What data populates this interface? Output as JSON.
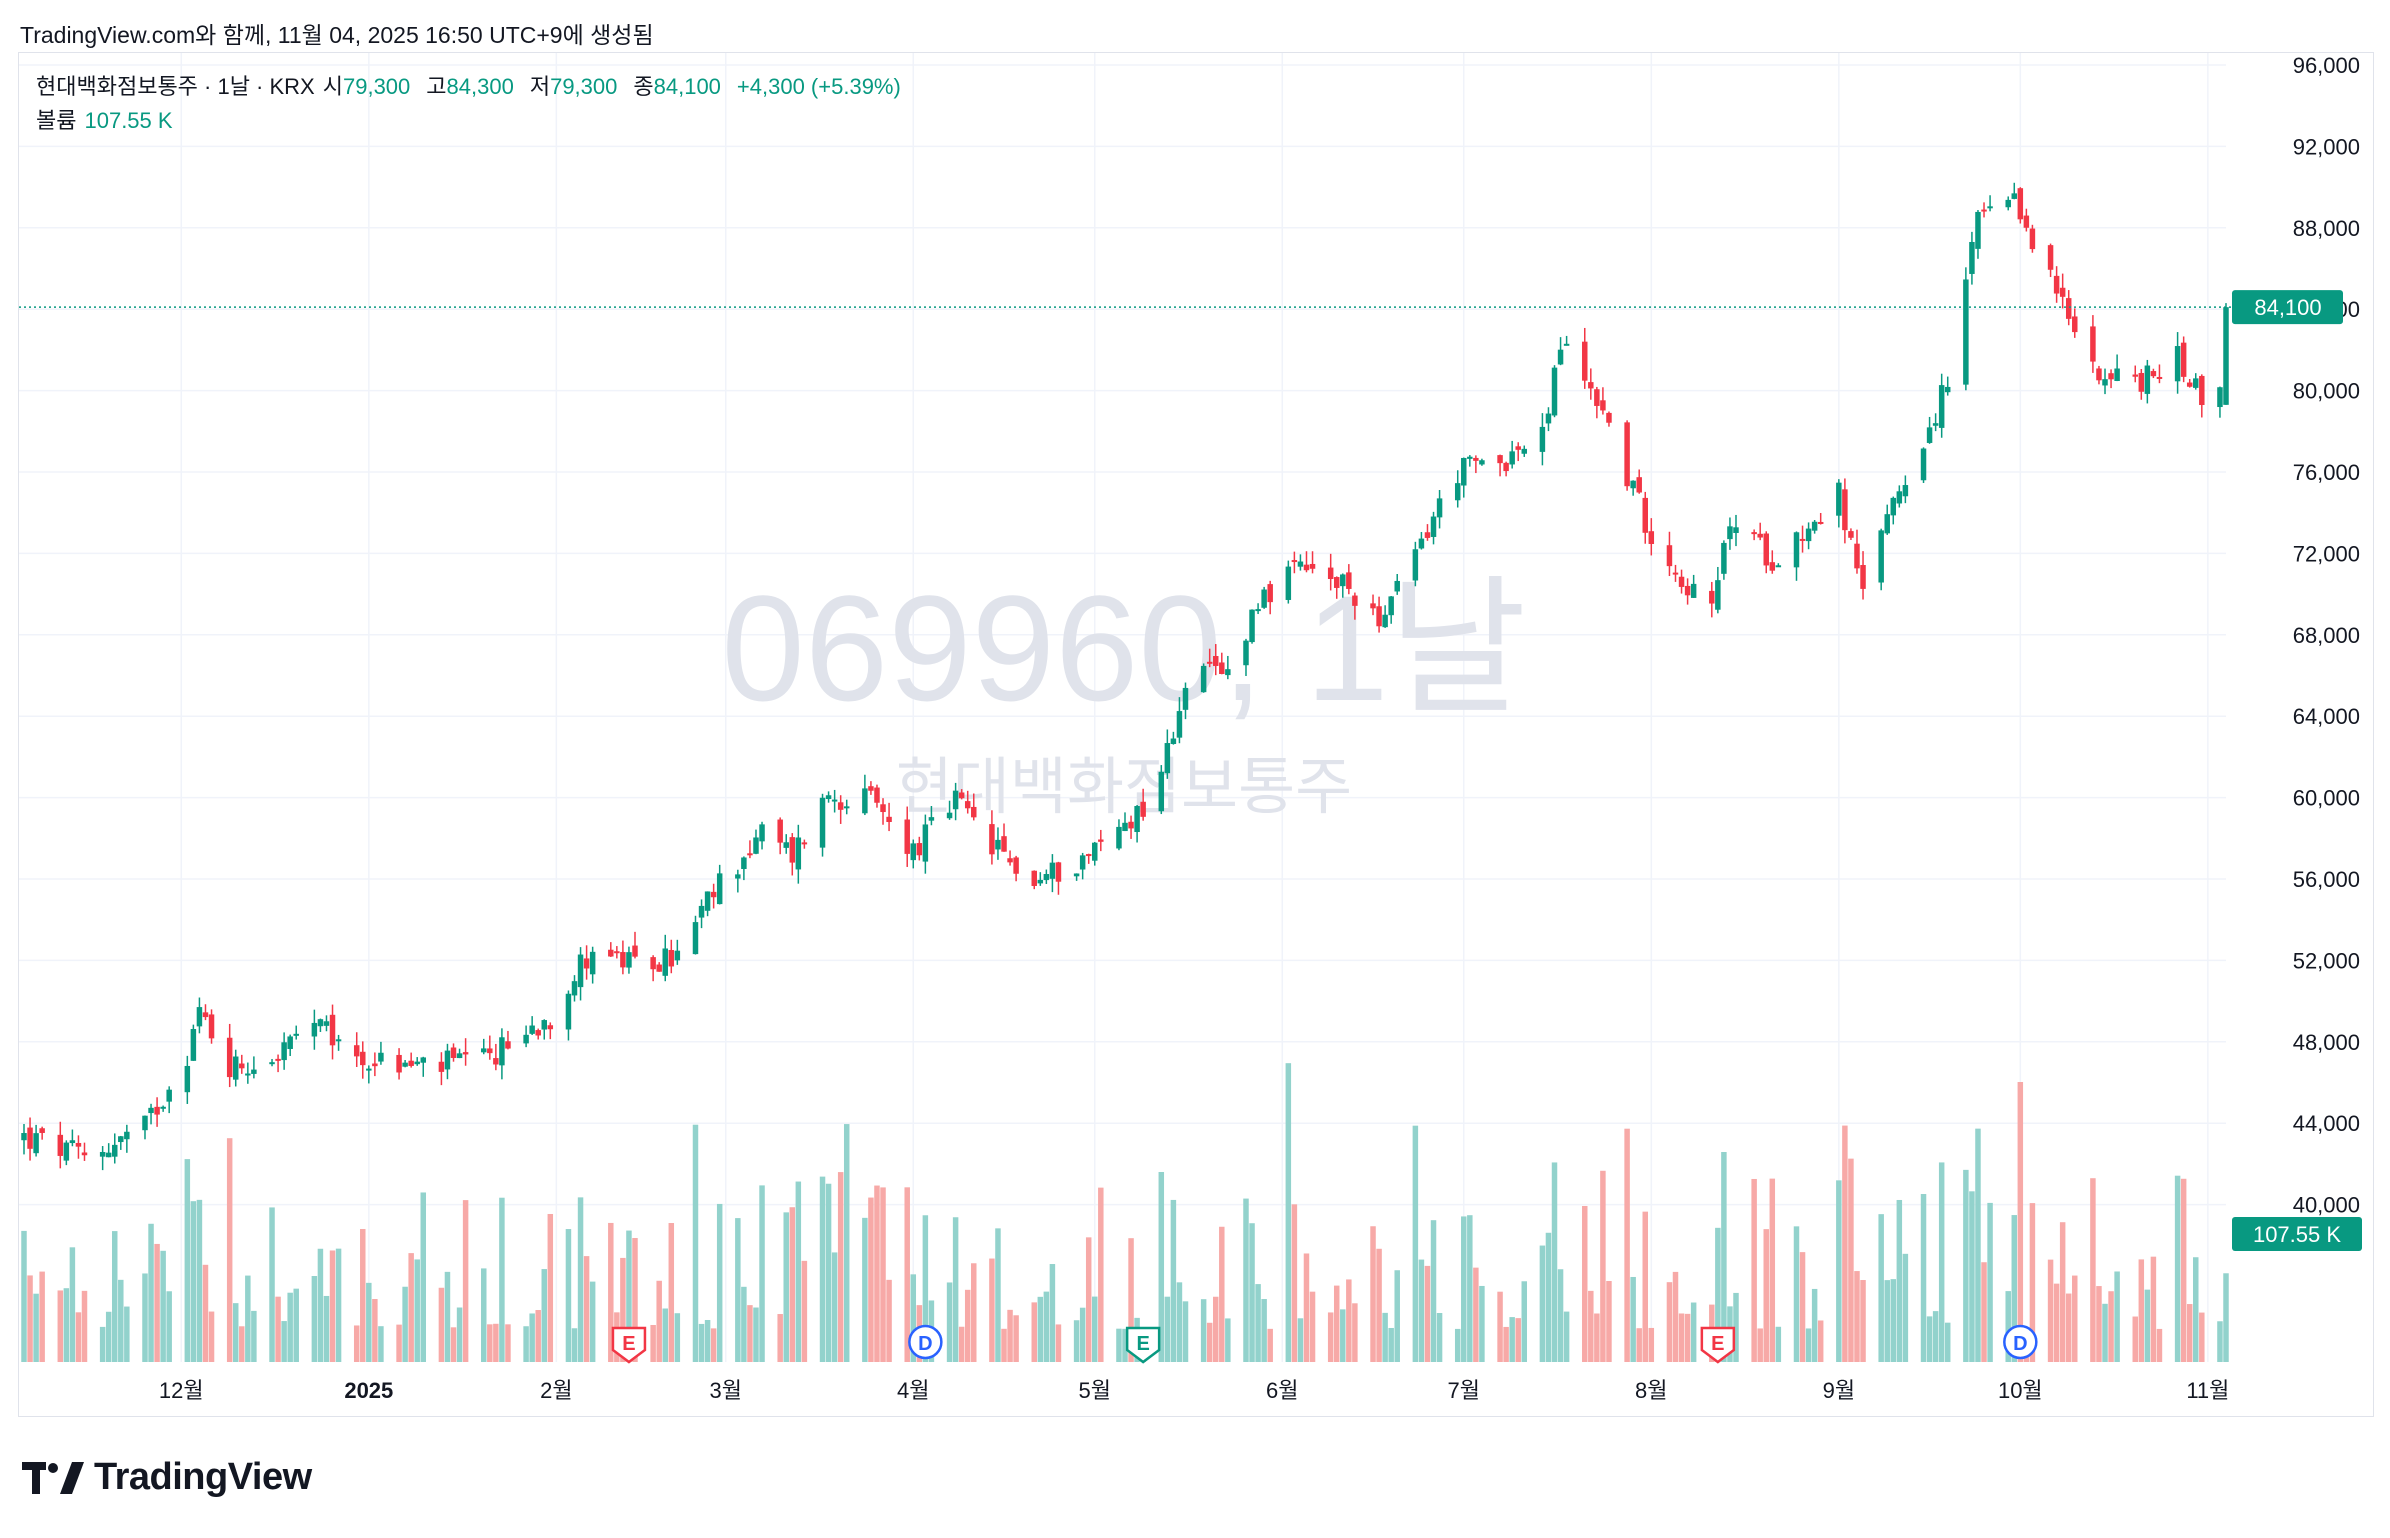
{
  "caption": "TradingView.com와 함께, 11월 04, 2025 16:50 UTC+9에 생성됨",
  "legend": {
    "title": "현대백화점보통주 · 1날 · KRX",
    "open_label": "시",
    "open": "79,300",
    "high_label": "고",
    "high": "84,300",
    "low_label": "저",
    "low": "79,300",
    "close_label": "종",
    "close": "84,100",
    "change": "+4,300 (+5.39%)",
    "volume_label": "볼륨",
    "volume": "107.55 K"
  },
  "watermark": {
    "symbol": "069960, 1날",
    "name": "현대백화점보통주"
  },
  "price_tag": "84,100",
  "volume_tag": "107.55 K",
  "brand": "TradingView",
  "colors": {
    "up": "#089981",
    "down": "#f23645",
    "up_vol": "#92d2cc",
    "down_vol": "#f7a9a7",
    "grid": "#f0f3fa",
    "axis_text": "#131722"
  },
  "chart_data": {
    "type": "candlestick",
    "y_axis": {
      "min": 36000,
      "max": 96000,
      "ticks": [
        "96,000",
        "92,000",
        "88,000",
        "84,000",
        "80,000",
        "76,000",
        "72,000",
        "68,000",
        "64,000",
        "60,000",
        "56,000",
        "52,000",
        "48,000",
        "44,000",
        "40,000"
      ]
    },
    "x_axis": {
      "labels": [
        {
          "label": "12월",
          "date": "2024-12-01",
          "bold": false
        },
        {
          "label": "2025",
          "date": "2025-01-01",
          "bold": true
        },
        {
          "label": "2월",
          "date": "2025-02-01",
          "bold": false
        },
        {
          "label": "3월",
          "date": "2025-03-01",
          "bold": false
        },
        {
          "label": "4월",
          "date": "2025-04-01",
          "bold": false
        },
        {
          "label": "5월",
          "date": "2025-05-01",
          "bold": false
        },
        {
          "label": "6월",
          "date": "2025-06-01",
          "bold": false
        },
        {
          "label": "7월",
          "date": "2025-07-01",
          "bold": false
        },
        {
          "label": "8월",
          "date": "2025-08-01",
          "bold": false
        },
        {
          "label": "9월",
          "date": "2025-09-01",
          "bold": false
        },
        {
          "label": "10월",
          "date": "2025-10-01",
          "bold": false
        },
        {
          "label": "11월",
          "date": "2025-11-01",
          "bold": false
        }
      ]
    },
    "date_range": [
      "2024-11-05",
      "2025-11-04"
    ],
    "price_keypoints": [
      {
        "date": "2024-11-05",
        "close": 43300
      },
      {
        "date": "2024-11-15",
        "close": 42300
      },
      {
        "date": "2024-11-25",
        "close": 43800
      },
      {
        "date": "2024-12-02",
        "close": 47500
      },
      {
        "date": "2024-12-04",
        "close": 49500
      },
      {
        "date": "2024-12-09",
        "close": 46800
      },
      {
        "date": "2024-12-16",
        "close": 47200
      },
      {
        "date": "2024-12-23",
        "close": 48800
      },
      {
        "date": "2024-12-30",
        "close": 47200
      },
      {
        "date": "2025-01-07",
        "close": 46800
      },
      {
        "date": "2025-01-20",
        "close": 47000
      },
      {
        "date": "2025-01-31",
        "close": 49300
      },
      {
        "date": "2025-02-07",
        "close": 52700
      },
      {
        "date": "2025-02-14",
        "close": 51600
      },
      {
        "date": "2025-02-21",
        "close": 52200
      },
      {
        "date": "2025-02-28",
        "close": 55800
      },
      {
        "date": "2025-03-07",
        "close": 58200
      },
      {
        "date": "2025-03-12",
        "close": 57200
      },
      {
        "date": "2025-03-18",
        "close": 60200
      },
      {
        "date": "2025-03-25",
        "close": 59800
      },
      {
        "date": "2025-04-01",
        "close": 57400
      },
      {
        "date": "2025-04-08",
        "close": 59800
      },
      {
        "date": "2025-04-14",
        "close": 57600
      },
      {
        "date": "2025-04-21",
        "close": 55800
      },
      {
        "date": "2025-04-30",
        "close": 57200
      },
      {
        "date": "2025-05-09",
        "close": 59600
      },
      {
        "date": "2025-05-13",
        "close": 62200
      },
      {
        "date": "2025-05-16",
        "close": 65800
      },
      {
        "date": "2025-05-23",
        "close": 66200
      },
      {
        "date": "2025-05-28",
        "close": 69800
      },
      {
        "date": "2025-06-04",
        "close": 71200
      },
      {
        "date": "2025-06-12",
        "close": 70200
      },
      {
        "date": "2025-06-18",
        "close": 68800
      },
      {
        "date": "2025-06-24",
        "close": 72600
      },
      {
        "date": "2025-06-30",
        "close": 76000
      },
      {
        "date": "2025-07-07",
        "close": 76600
      },
      {
        "date": "2025-07-14",
        "close": 77600
      },
      {
        "date": "2025-07-17",
        "close": 82300
      },
      {
        "date": "2025-07-23",
        "close": 79700
      },
      {
        "date": "2025-07-31",
        "close": 73600
      },
      {
        "date": "2025-08-06",
        "close": 70800
      },
      {
        "date": "2025-08-11",
        "close": 69000
      },
      {
        "date": "2025-08-14",
        "close": 73600
      },
      {
        "date": "2025-08-21",
        "close": 71800
      },
      {
        "date": "2025-08-28",
        "close": 73600
      },
      {
        "date": "2025-09-01",
        "close": 75000
      },
      {
        "date": "2025-09-05",
        "close": 69600
      },
      {
        "date": "2025-09-08",
        "close": 73400
      },
      {
        "date": "2025-09-12",
        "close": 75800
      },
      {
        "date": "2025-09-19",
        "close": 80200
      },
      {
        "date": "2025-09-24",
        "close": 88500
      },
      {
        "date": "2025-09-30",
        "close": 89000
      },
      {
        "date": "2025-10-02",
        "close": 88200
      },
      {
        "date": "2025-10-10",
        "close": 82800
      },
      {
        "date": "2025-10-15",
        "close": 80800
      },
      {
        "date": "2025-10-21",
        "close": 80400
      },
      {
        "date": "2025-10-27",
        "close": 81600
      },
      {
        "date": "2025-10-31",
        "close": 79800
      },
      {
        "date": "2025-11-03",
        "close": 79800
      },
      {
        "date": "2025-11-04",
        "close": 84100
      }
    ],
    "volume_max_k": 400,
    "markers": [
      {
        "label": "E",
        "date": "2025-02-13",
        "color": "#f23645"
      },
      {
        "label": "D",
        "date": "2025-04-03",
        "color": "#2962ff"
      },
      {
        "label": "E",
        "date": "2025-05-09",
        "color": "#089981"
      },
      {
        "label": "E",
        "date": "2025-08-12",
        "color": "#f23645"
      },
      {
        "label": "D",
        "date": "2025-10-01",
        "color": "#2962ff"
      }
    ],
    "last": {
      "open": 79300,
      "high": 84300,
      "low": 79300,
      "close": 84100,
      "volume_k": 107.55
    }
  }
}
